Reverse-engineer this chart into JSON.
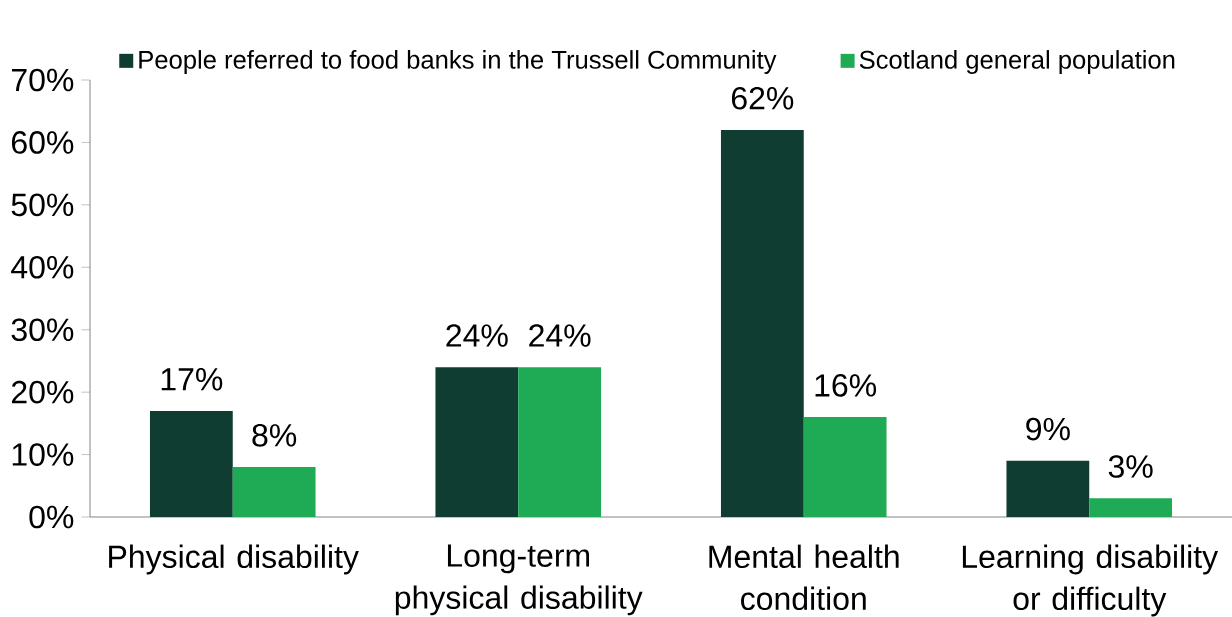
{
  "chart_data": {
    "type": "bar",
    "categories": [
      "Physical disability",
      "Long-term physical disability",
      "Mental health condition",
      "Learning disability or difficulty"
    ],
    "series": [
      {
        "name": "People referred to food banks in the Trussell Community",
        "color": "#0f3d31",
        "values": [
          17,
          24,
          62,
          9
        ],
        "value_labels": [
          "17%",
          "24%",
          "62%",
          "9%"
        ]
      },
      {
        "name": "Scotland general population",
        "color": "#1fab55",
        "values": [
          8,
          24,
          16,
          3
        ],
        "value_labels": [
          "8%",
          "24%",
          "16%",
          "3%"
        ]
      }
    ],
    "ylim": [
      0,
      70
    ],
    "yticks": [
      {
        "value": 0,
        "label": "0%"
      },
      {
        "value": 10,
        "label": "10%"
      },
      {
        "value": 20,
        "label": "20%"
      },
      {
        "value": 30,
        "label": "30%"
      },
      {
        "value": 40,
        "label": "40%"
      },
      {
        "value": 50,
        "label": "50%"
      },
      {
        "value": 60,
        "label": "60%"
      },
      {
        "value": 70,
        "label": "70%"
      }
    ],
    "grid": false,
    "legend": "top"
  }
}
